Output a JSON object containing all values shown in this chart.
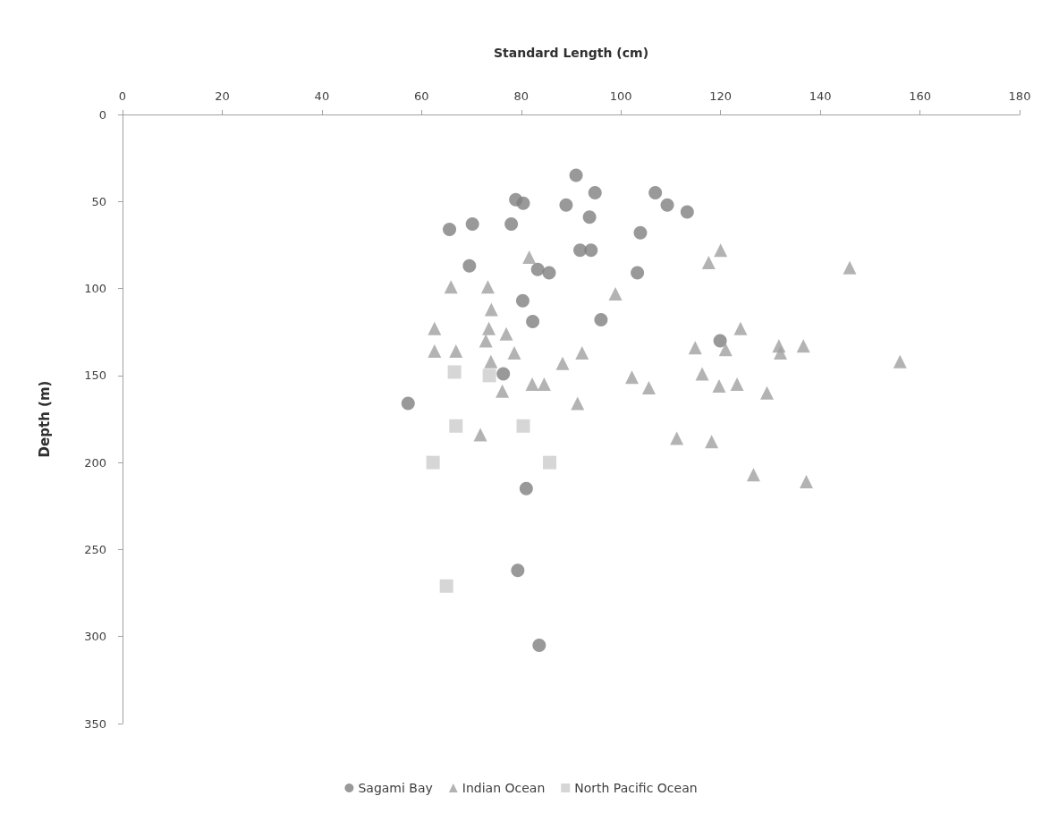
{
  "chart_data": {
    "type": "scatter",
    "xlabel": "Standard Length (cm)",
    "ylabel": "Depth (m)",
    "xlim": [
      0,
      180
    ],
    "xticks": [
      0,
      20,
      40,
      60,
      80,
      100,
      120,
      140,
      160,
      180
    ],
    "ylim": [
      350,
      0
    ],
    "yticks": [
      0,
      50,
      100,
      150,
      200,
      250,
      300,
      350
    ],
    "grid": false,
    "legend": "bottom",
    "series": [
      {
        "name": "Sagami Bay",
        "color": "#808080",
        "marker": "circle",
        "x": [
          91.0,
          94.8,
          106.9,
          78.9,
          80.4,
          89.0,
          109.3,
          113.3,
          93.7,
          65.6,
          70.2,
          78.0,
          103.9,
          91.8,
          94.0,
          69.6,
          83.3,
          85.6,
          103.3,
          80.3,
          82.3,
          96.0,
          76.4,
          57.3,
          81.0,
          119.9,
          79.3,
          83.6
        ],
        "values": [
          35,
          45,
          45,
          49,
          51,
          52,
          52,
          56,
          59,
          66,
          63,
          63,
          68,
          78,
          78,
          87,
          89,
          91,
          91,
          107,
          119,
          118,
          149,
          166,
          215,
          130,
          262,
          305
        ]
      },
      {
        "name": "Indian Ocean",
        "color": "#a0a0a0",
        "marker": "triangle",
        "x": [
          81.6,
          65.9,
          73.3,
          98.9,
          117.6,
          74.0,
          62.6,
          73.5,
          77.0,
          72.9,
          62.6,
          66.9,
          78.6,
          92.2,
          73.9,
          88.3,
          114.9,
          116.3,
          119.7,
          76.2,
          82.2,
          84.6,
          91.3,
          102.2,
          105.6,
          71.8,
          111.2,
          118.2,
          120.0,
          145.9,
          124.0,
          121.0,
          131.7,
          132.0,
          136.6,
          123.3,
          129.3,
          126.6,
          137.2,
          156.0
        ],
        "values": [
          82,
          99,
          99,
          103,
          85,
          112,
          123,
          123,
          126,
          130,
          136,
          136,
          137,
          137,
          142,
          143,
          134,
          149,
          156,
          159,
          155,
          155,
          166,
          151,
          157,
          184,
          186,
          188,
          78,
          88,
          123,
          135,
          133,
          137,
          133,
          155,
          160,
          207,
          211,
          142
        ]
      },
      {
        "name": "North Pacific Ocean",
        "color": "#cccccc",
        "marker": "square",
        "x": [
          66.6,
          73.6,
          66.9,
          80.4,
          62.3,
          85.7,
          65.0
        ],
        "values": [
          148,
          150,
          179,
          179,
          200,
          200,
          271
        ]
      }
    ]
  }
}
